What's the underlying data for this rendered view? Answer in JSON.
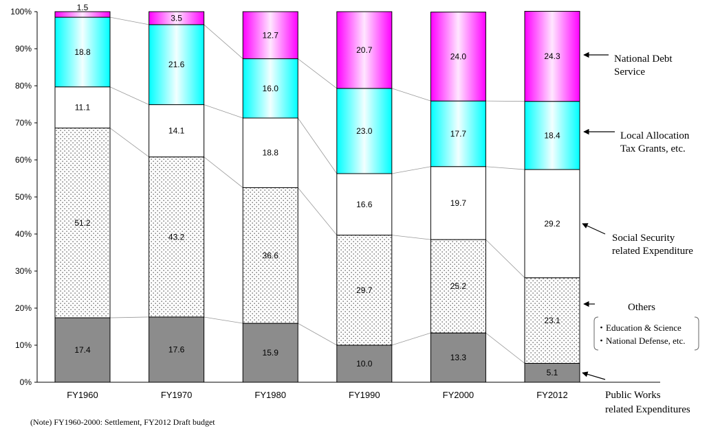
{
  "chart_data": {
    "type": "bar",
    "stacked": true,
    "categories": [
      "FY1960",
      "FY1970",
      "FY1980",
      "FY1990",
      "FY2000",
      "FY2012"
    ],
    "y_ticks": [
      "0%",
      "10%",
      "20%",
      "30%",
      "40%",
      "50%",
      "60%",
      "70%",
      "80%",
      "90%",
      "100%"
    ],
    "ylim": [
      0,
      100
    ],
    "grid": false,
    "series": [
      {
        "values": [
          17.4,
          17.6,
          15.9,
          10.0,
          13.3,
          5.1
        ],
        "color": "#8c8c8c",
        "pattern": "solid",
        "annotation_index": 5
      },
      {
        "values": [
          51.2,
          43.2,
          36.6,
          29.7,
          25.2,
          23.1
        ],
        "color": "#ffffff",
        "pattern": "dots",
        "annotation_index": 3
      },
      {
        "values": [
          11.1,
          14.1,
          18.8,
          16.6,
          19.7,
          29.2
        ],
        "color": "#ffffff",
        "pattern": "solid",
        "annotation_index": 2
      },
      {
        "values": [
          18.8,
          21.6,
          16.0,
          23.0,
          17.7,
          18.4
        ],
        "color": "#00ffff",
        "pattern": "cyan-gradient",
        "annotation_index": 1
      },
      {
        "values": [
          1.5,
          3.5,
          12.7,
          20.7,
          24.0,
          24.3
        ],
        "color": "#ff00ff",
        "pattern": "magenta-gradient",
        "annotation_index": 0
      }
    ],
    "value_labels": [
      [
        "17.4",
        "51.2",
        "11.1",
        "18.8",
        "1.5"
      ],
      [
        "17.6",
        "43.2",
        "14.1",
        "21.6",
        "3.5"
      ],
      [
        "15.9",
        "36.6",
        "18.8",
        "16.0",
        "12.7"
      ],
      [
        "10.0",
        "29.7",
        "16.6",
        "23.0",
        "20.7"
      ],
      [
        "13.3",
        "25.2",
        "19.7",
        "17.7",
        "24.0"
      ],
      [
        "5.1",
        "23.1",
        "29.2",
        "18.4",
        "24.3"
      ]
    ],
    "annotations": [
      {
        "lines": [
          "National Debt",
          "Service"
        ]
      },
      {
        "lines": [
          "Local Allocation",
          "Tax Grants, etc."
        ]
      },
      {
        "lines": [
          "Social Security",
          "related Expenditure"
        ]
      },
      {
        "lines": [
          "Others"
        ],
        "bracket_lines": [
          "・Education & Science",
          "・National Defense, etc."
        ]
      },
      {
        "lines": []
      },
      {
        "lines": [
          "Public Works",
          "related Expenditures"
        ]
      }
    ],
    "note": "(Note) FY1960-2000: Settlement, FY2012 Draft budget"
  }
}
